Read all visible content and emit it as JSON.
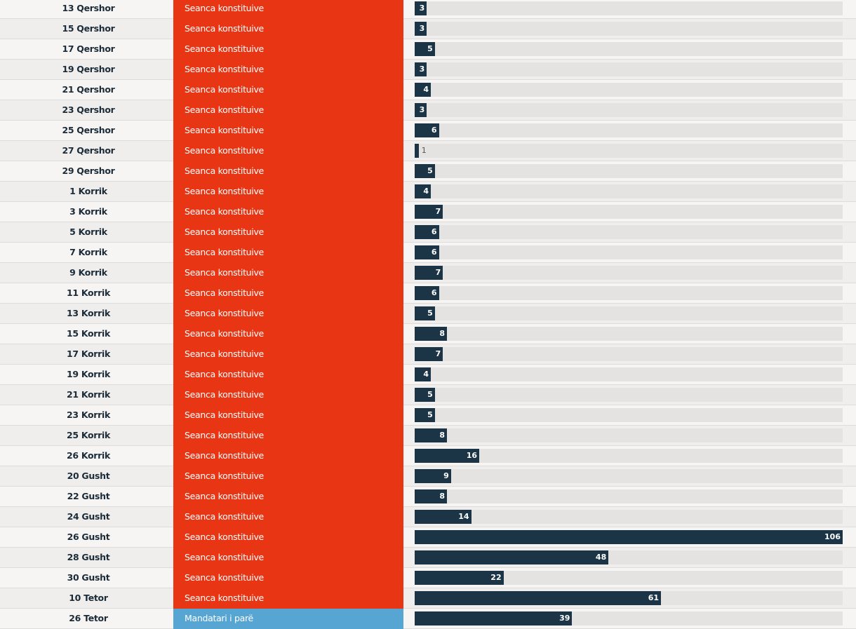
{
  "colors": {
    "phase_constitutive": "#e83514",
    "phase_mandate": "#57a5d2",
    "bar": "#1b3547",
    "track": "#e4e3e1"
  },
  "chart_data": {
    "type": "bar",
    "orientation": "horizontal",
    "xlim": [
      0,
      106
    ],
    "rows": [
      {
        "date": "13 Qershor",
        "phase": "Seanca konstituive",
        "value": 3
      },
      {
        "date": "15 Qershor",
        "phase": "Seanca konstituive",
        "value": 3
      },
      {
        "date": "17 Qershor",
        "phase": "Seanca konstituive",
        "value": 5
      },
      {
        "date": "19 Qershor",
        "phase": "Seanca konstituive",
        "value": 3
      },
      {
        "date": "21 Qershor",
        "phase": "Seanca konstituive",
        "value": 4
      },
      {
        "date": "23 Qershor",
        "phase": "Seanca konstituive",
        "value": 3
      },
      {
        "date": "25 Qershor",
        "phase": "Seanca konstituive",
        "value": 6
      },
      {
        "date": "27 Qershor",
        "phase": "Seanca konstituive",
        "value": 1
      },
      {
        "date": "29 Qershor",
        "phase": "Seanca konstituive",
        "value": 5
      },
      {
        "date": "1 Korrik",
        "phase": "Seanca konstituive",
        "value": 4
      },
      {
        "date": "3 Korrik",
        "phase": "Seanca konstituive",
        "value": 7
      },
      {
        "date": "5 Korrik",
        "phase": "Seanca konstituive",
        "value": 6
      },
      {
        "date": "7 Korrik",
        "phase": "Seanca konstituive",
        "value": 6
      },
      {
        "date": "9 Korrik",
        "phase": "Seanca konstituive",
        "value": 7
      },
      {
        "date": "11 Korrik",
        "phase": "Seanca konstituive",
        "value": 6
      },
      {
        "date": "13 Korrik",
        "phase": "Seanca konstituive",
        "value": 5
      },
      {
        "date": "15 Korrik",
        "phase": "Seanca konstituive",
        "value": 8
      },
      {
        "date": "17 Korrik",
        "phase": "Seanca konstituive",
        "value": 7
      },
      {
        "date": "19 Korrik",
        "phase": "Seanca konstituive",
        "value": 4
      },
      {
        "date": "21 Korrik",
        "phase": "Seanca konstituive",
        "value": 5
      },
      {
        "date": "23 Korrik",
        "phase": "Seanca konstituive",
        "value": 5
      },
      {
        "date": "25 Korrik",
        "phase": "Seanca konstituive",
        "value": 8
      },
      {
        "date": "26 Korrik",
        "phase": "Seanca konstituive",
        "value": 16
      },
      {
        "date": "20 Gusht",
        "phase": "Seanca konstituive",
        "value": 9
      },
      {
        "date": "22 Gusht",
        "phase": "Seanca konstituive",
        "value": 8
      },
      {
        "date": "24 Gusht",
        "phase": "Seanca konstituive",
        "value": 14
      },
      {
        "date": "26 Gusht",
        "phase": "Seanca konstituive",
        "value": 106
      },
      {
        "date": "28 Gusht",
        "phase": "Seanca konstituive",
        "value": 48
      },
      {
        "date": "30 Gusht",
        "phase": "Seanca konstituive",
        "value": 22
      },
      {
        "date": "10 Tetor",
        "phase": "Seanca konstituive",
        "value": 61
      },
      {
        "date": "26 Tetor",
        "phase": "Mandatari i parë",
        "value": 39
      }
    ]
  }
}
